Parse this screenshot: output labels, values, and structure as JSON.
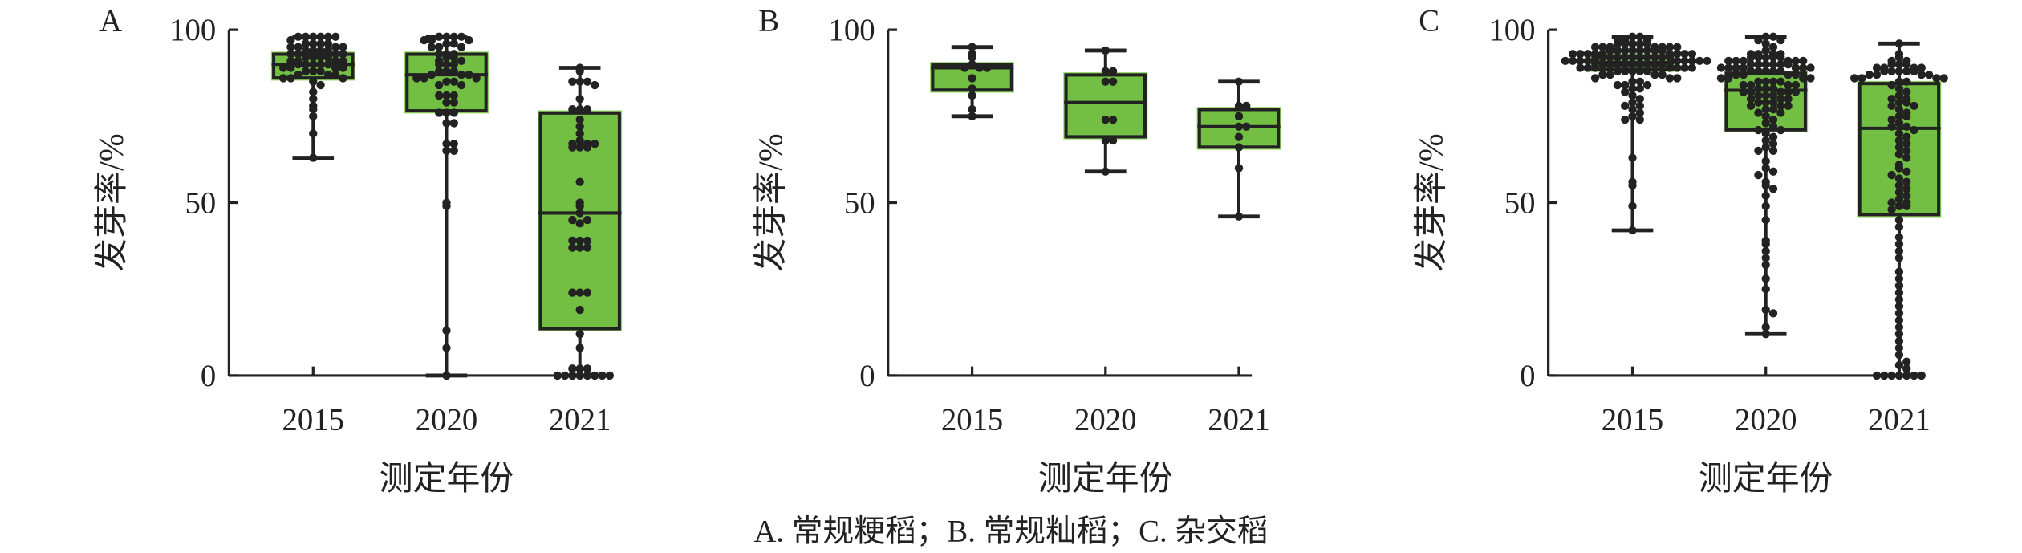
{
  "caption": "A. 常规粳稻；B. 常规籼稻；C. 杂交稻",
  "colors": {
    "box_fill": "#72bf44",
    "box_edge": "#8fd45f",
    "stroke": "#222222",
    "dot": "#222222"
  },
  "chart_data": [
    {
      "type": "box",
      "panel_label": "A",
      "xlabel": "测定年份",
      "ylabel": "发芽率/%",
      "ylim": [
        0,
        100
      ],
      "yticks": [
        0,
        50,
        100
      ],
      "categories": [
        "2015",
        "2020",
        "2021"
      ],
      "boxes": [
        {
          "min": 63,
          "q1": 85.5,
          "median": 90,
          "q3": 93.5,
          "max": 98
        },
        {
          "min": 0,
          "q1": 76,
          "median": 87,
          "q3": 93.5,
          "max": 98
        },
        {
          "min": 0,
          "q1": 13,
          "median": 47,
          "q3": 76.5,
          "max": 89
        }
      ],
      "points": [
        [
          98,
          98,
          98,
          98,
          98,
          98,
          97,
          96,
          96,
          96,
          96,
          95,
          95,
          95,
          95,
          94,
          94,
          94,
          94,
          93,
          93,
          93,
          93,
          92,
          92,
          92,
          92,
          91,
          91,
          91,
          91,
          90,
          90,
          90,
          90,
          90,
          89,
          89,
          89,
          89,
          88,
          88,
          88,
          87,
          87,
          87,
          86,
          86,
          86,
          85,
          84,
          82,
          80,
          78,
          77,
          75,
          70,
          63
        ],
        [
          98,
          98,
          98,
          98,
          97,
          97,
          97,
          96,
          96,
          95,
          95,
          95,
          93,
          93,
          93,
          92,
          92,
          91,
          91,
          90,
          90,
          90,
          88,
          88,
          88,
          87,
          87,
          87,
          86,
          86,
          86,
          85,
          85,
          84,
          84,
          81,
          81,
          81,
          79,
          79,
          76,
          76,
          76,
          73,
          73,
          67,
          67,
          65,
          65,
          50,
          49,
          13,
          8,
          0
        ],
        [
          89,
          88,
          85,
          85,
          85,
          84,
          80,
          77,
          77,
          77,
          74,
          72,
          70,
          68,
          67,
          67,
          67,
          66,
          66,
          66,
          56,
          50,
          49,
          47,
          45,
          45,
          44,
          39,
          39,
          39,
          37,
          37,
          37,
          24,
          24,
          24,
          19,
          12,
          8,
          2,
          2,
          2,
          0,
          0,
          0,
          0,
          0,
          0,
          0,
          0
        ]
      ]
    },
    {
      "type": "box",
      "panel_label": "B",
      "xlabel": "测定年份",
      "ylabel": "发芽率/%",
      "ylim": [
        0,
        100
      ],
      "yticks": [
        0,
        50,
        100
      ],
      "categories": [
        "2015",
        "2020",
        "2021"
      ],
      "boxes": [
        {
          "min": 75,
          "q1": 82,
          "median": 89,
          "q3": 90.5,
          "max": 95
        },
        {
          "min": 59,
          "q1": 68.5,
          "median": 79,
          "q3": 87.5,
          "max": 94
        },
        {
          "min": 46,
          "q1": 65.5,
          "median": 72,
          "q3": 77.5,
          "max": 85
        }
      ],
      "points": [
        [
          95,
          93,
          92,
          90,
          89,
          89,
          89,
          86,
          83,
          81,
          77,
          75
        ],
        [
          94,
          88,
          88,
          85,
          85,
          74,
          74,
          68,
          68,
          59
        ],
        [
          85,
          78,
          78,
          75,
          72,
          72,
          69,
          66,
          60,
          46
        ]
      ]
    },
    {
      "type": "box",
      "panel_label": "C",
      "xlabel": "测定年份",
      "ylabel": "发芽率/%",
      "ylim": [
        0,
        100
      ],
      "yticks": [
        0,
        50,
        100
      ],
      "categories": [
        "2015",
        "2020",
        "2021"
      ],
      "boxes": [
        {
          "min": 42,
          "q1": 88,
          "median": 90.5,
          "q3": 93,
          "max": 98
        },
        {
          "min": 12,
          "q1": 70.5,
          "median": 82.5,
          "q3": 88,
          "max": 98
        },
        {
          "min": 0,
          "q1": 46,
          "median": 71.5,
          "q3": 85,
          "max": 96
        }
      ],
      "points": [
        [
          98,
          98,
          97,
          97,
          97,
          96,
          96,
          96,
          96,
          96,
          95,
          95,
          95,
          95,
          95,
          95,
          95,
          94,
          94,
          94,
          94,
          94,
          94,
          94,
          94,
          93,
          93,
          93,
          93,
          93,
          93,
          93,
          93,
          93,
          92,
          92,
          92,
          92,
          92,
          92,
          92,
          92,
          92,
          92,
          91,
          91,
          91,
          91,
          91,
          91,
          91,
          91,
          91,
          91,
          90,
          90,
          90,
          90,
          90,
          90,
          90,
          90,
          90,
          89,
          89,
          89,
          89,
          89,
          89,
          89,
          88,
          88,
          88,
          88,
          88,
          87,
          87,
          87,
          87,
          86,
          86,
          86,
          85,
          85,
          84,
          84,
          84,
          83,
          83,
          82,
          81,
          80,
          79,
          78,
          78,
          77,
          76,
          75,
          74,
          74,
          63,
          56,
          55,
          49,
          42
        ],
        [
          98,
          98,
          97,
          97,
          96,
          95,
          94,
          93,
          93,
          93,
          93,
          92,
          92,
          92,
          92,
          92,
          91,
          91,
          91,
          91,
          91,
          91,
          90,
          90,
          90,
          90,
          90,
          90,
          89,
          89,
          89,
          89,
          89,
          89,
          89,
          88,
          88,
          88,
          88,
          88,
          87,
          87,
          87,
          87,
          86,
          86,
          86,
          86,
          85,
          85,
          85,
          85,
          84,
          84,
          84,
          84,
          83,
          83,
          83,
          82,
          82,
          82,
          82,
          82,
          81,
          81,
          81,
          80,
          80,
          80,
          79,
          79,
          79,
          78,
          78,
          78,
          77,
          77,
          76,
          76,
          75,
          74,
          73,
          72,
          71,
          71,
          70,
          69,
          68,
          67,
          66,
          65,
          65,
          62,
          60,
          59,
          58,
          56,
          55,
          54,
          52,
          49,
          45,
          39,
          38,
          36,
          34,
          32,
          28,
          25,
          19,
          18,
          14,
          12
        ],
        [
          96,
          93,
          92,
          91,
          91,
          90,
          90,
          90,
          89,
          89,
          89,
          89,
          88,
          88,
          88,
          88,
          88,
          87,
          87,
          87,
          87,
          86,
          86,
          86,
          86,
          85,
          85,
          84,
          83,
          82,
          81,
          80,
          80,
          79,
          79,
          78,
          78,
          77,
          76,
          75,
          75,
          74,
          73,
          72,
          72,
          71,
          70,
          69,
          68,
          67,
          66,
          65,
          64,
          63,
          61,
          60,
          59,
          58,
          57,
          56,
          55,
          54,
          53,
          52,
          51,
          50,
          50,
          49,
          49,
          48,
          45,
          43,
          40,
          38,
          36,
          34,
          30,
          28,
          26,
          24,
          22,
          20,
          18,
          16,
          14,
          12,
          10,
          8,
          6,
          4,
          3,
          2,
          0,
          0,
          0,
          0,
          0,
          0,
          0
        ]
      ]
    }
  ]
}
